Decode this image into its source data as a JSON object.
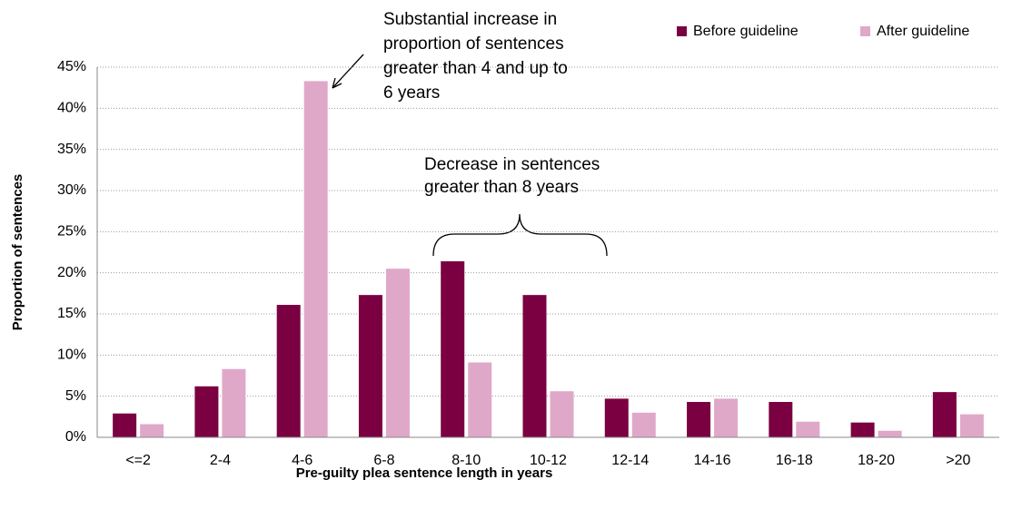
{
  "chart_data": {
    "type": "bar",
    "x_label": "Pre-guilty plea sentence length in years",
    "y_label": "Proportion of sentences",
    "categories": [
      "<=2",
      "2-4",
      "4-6",
      "6-8",
      "8-10",
      "10-12",
      "12-14",
      "14-16",
      "16-18",
      "18-20",
      ">20"
    ],
    "series": [
      {
        "name": "Before guideline",
        "color": "#7b0041",
        "values": [
          2.9,
          6.2,
          16.1,
          17.3,
          21.4,
          17.3,
          4.7,
          4.3,
          4.3,
          1.8,
          5.5
        ]
      },
      {
        "name": "After guideline",
        "color": "#e0a8c8",
        "values": [
          1.6,
          8.3,
          43.3,
          20.5,
          9.1,
          5.6,
          3.0,
          4.7,
          1.9,
          0.8,
          2.8
        ]
      }
    ],
    "ylim": [
      0,
      45
    ],
    "yticks": [
      {
        "value": 0,
        "label": "0%"
      },
      {
        "value": 5,
        "label": "5%"
      },
      {
        "value": 10,
        "label": "10%"
      },
      {
        "value": 15,
        "label": "15%"
      },
      {
        "value": 20,
        "label": "20%"
      },
      {
        "value": 25,
        "label": "25%"
      },
      {
        "value": 30,
        "label": "30%"
      },
      {
        "value": 35,
        "label": "35%"
      },
      {
        "value": 40,
        "label": "40%"
      },
      {
        "value": 45,
        "label": "45%"
      }
    ],
    "grid": true,
    "legend": "top-right",
    "annotations": [
      {
        "lines": [
          "Substantial increase in",
          "proportion of sentences",
          "greater than 4 and up to",
          "6 years"
        ]
      },
      {
        "lines": [
          "Decrease in sentences",
          "greater than 8 years"
        ]
      }
    ]
  }
}
